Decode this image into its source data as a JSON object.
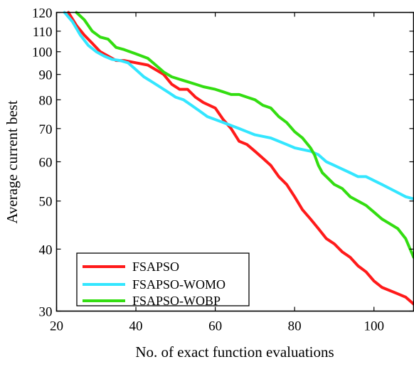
{
  "chart_data": {
    "type": "line",
    "title": "",
    "xlabel": "No. of exact function evaluations",
    "ylabel": "Average current best",
    "xlim": [
      20,
      110
    ],
    "ylim": [
      30,
      120
    ],
    "yscale": "log",
    "xticks": [
      20,
      40,
      60,
      80,
      100
    ],
    "xtick_labels": [
      "20",
      "40",
      "60",
      "80",
      "100"
    ],
    "yticks": [
      30,
      40,
      50,
      60,
      70,
      80,
      90,
      100,
      110,
      120
    ],
    "ytick_labels": [
      "30",
      "40",
      "50",
      "60",
      "70",
      "80",
      "90",
      "100",
      "110",
      "120"
    ],
    "grid": false,
    "legend_position": "bottom-left",
    "series": [
      {
        "name": "FSAPSO",
        "color": "#ff1a1a",
        "x": [
          23,
          25,
          27,
          29,
          31,
          33,
          35,
          37,
          40,
          43,
          45,
          47,
          49,
          51,
          53,
          55,
          57,
          60,
          62,
          64,
          66,
          68,
          70,
          72,
          74,
          76,
          78,
          80,
          82,
          84,
          86,
          88,
          90,
          92,
          94,
          96,
          98,
          100,
          102,
          104,
          106,
          108,
          110
        ],
        "y": [
          120,
          113,
          108,
          104,
          100,
          98,
          96,
          96,
          95,
          94,
          92,
          90,
          86,
          84,
          84,
          81,
          79,
          77,
          73,
          70,
          66,
          65,
          63,
          61,
          59,
          56,
          54,
          51,
          48,
          46,
          44,
          42,
          41,
          39.5,
          38.5,
          37,
          36,
          34.5,
          33.5,
          33,
          32.5,
          32,
          31
        ]
      },
      {
        "name": "FSAPSO-WOMO",
        "color": "#33e6ff",
        "x": [
          22,
          24,
          26,
          28,
          30,
          32,
          34,
          36,
          38,
          40,
          42,
          44,
          46,
          48,
          50,
          52,
          54,
          56,
          58,
          60,
          62,
          64,
          66,
          68,
          70,
          72,
          74,
          76,
          78,
          80,
          82,
          84,
          86,
          88,
          90,
          92,
          94,
          96,
          98,
          100,
          102,
          104,
          106,
          108,
          110
        ],
        "y": [
          120,
          115,
          108,
          103,
          100,
          98,
          96.5,
          96,
          95,
          92,
          89,
          87,
          85,
          83,
          81,
          80,
          78,
          76,
          74,
          73,
          72,
          71,
          70,
          69,
          68,
          67.5,
          67,
          66,
          65,
          64,
          63.5,
          63,
          62,
          60,
          59,
          58,
          57,
          56,
          56,
          55,
          54,
          53,
          52,
          51,
          50.5
        ]
      },
      {
        "name": "FSAPSO-WOBP",
        "color": "#33dd11",
        "x": [
          25,
          27,
          29,
          31,
          33,
          35,
          37,
          40,
          43,
          45,
          47,
          49,
          51,
          53,
          55,
          57,
          60,
          62,
          64,
          66,
          68,
          70,
          72,
          74,
          76,
          78,
          80,
          82,
          84,
          85,
          86,
          87,
          88,
          90,
          92,
          94,
          96,
          98,
          100,
          102,
          104,
          106,
          108,
          110
        ],
        "y": [
          120,
          116,
          110,
          107,
          106,
          102,
          101,
          99,
          97,
          94,
          91,
          89,
          88,
          87,
          86,
          85,
          84,
          83,
          82,
          82,
          81,
          80,
          78,
          77,
          74,
          72,
          69,
          67,
          64,
          62,
          59,
          57,
          56,
          54,
          53,
          51,
          50,
          49,
          47.5,
          46,
          45,
          44,
          42,
          38.5
        ]
      }
    ]
  }
}
